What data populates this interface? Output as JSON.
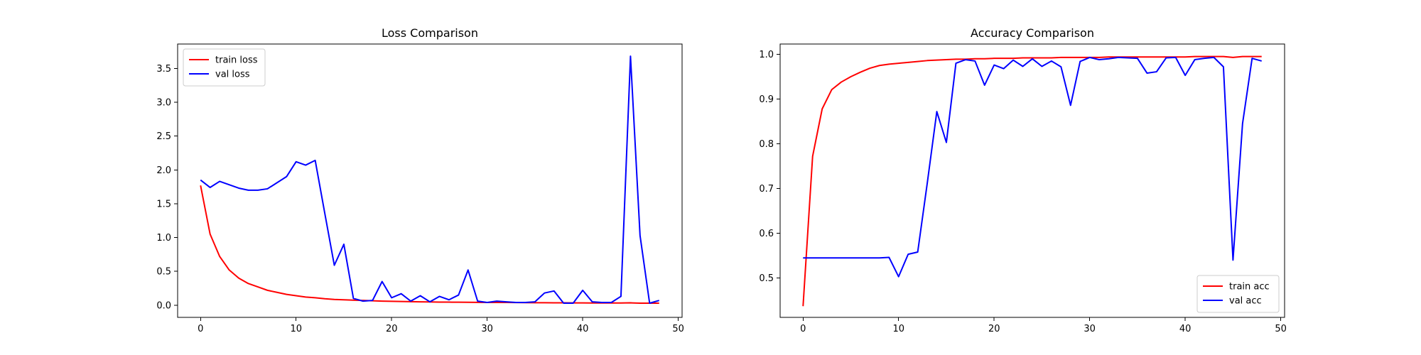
{
  "chart_data": [
    {
      "type": "line",
      "title": "Loss Comparison",
      "xlabel": "",
      "ylabel": "",
      "xlim": [
        -2.4,
        50.4
      ],
      "ylim": [
        -0.18,
        3.86
      ],
      "xticks": [
        0,
        10,
        20,
        30,
        40,
        50
      ],
      "yticks": [
        0.0,
        0.5,
        1.0,
        1.5,
        2.0,
        2.5,
        3.0,
        3.5
      ],
      "yticks_decimals": 1,
      "grid": false,
      "legend": "top-left",
      "series": [
        {
          "name": "train loss",
          "color": "#ff0000",
          "x": [
            0,
            1,
            2,
            3,
            4,
            5,
            6,
            7,
            8,
            9,
            10,
            11,
            12,
            13,
            14,
            15,
            16,
            17,
            18,
            19,
            20,
            21,
            22,
            23,
            24,
            25,
            26,
            27,
            28,
            29,
            30,
            31,
            32,
            33,
            34,
            35,
            36,
            37,
            38,
            39,
            40,
            41,
            42,
            43,
            44,
            45,
            46,
            47,
            48
          ],
          "values": [
            1.77,
            1.05,
            0.72,
            0.52,
            0.4,
            0.32,
            0.27,
            0.22,
            0.19,
            0.16,
            0.14,
            0.12,
            0.11,
            0.095,
            0.085,
            0.08,
            0.075,
            0.07,
            0.065,
            0.06,
            0.057,
            0.055,
            0.052,
            0.05,
            0.048,
            0.046,
            0.045,
            0.044,
            0.043,
            0.042,
            0.041,
            0.04,
            0.04,
            0.039,
            0.038,
            0.037,
            0.036,
            0.035,
            0.035,
            0.034,
            0.034,
            0.033,
            0.033,
            0.032,
            0.032,
            0.035,
            0.03,
            0.03,
            0.03
          ]
        },
        {
          "name": "val loss",
          "color": "#0000ff",
          "x": [
            0,
            1,
            2,
            3,
            4,
            5,
            6,
            7,
            8,
            9,
            10,
            11,
            12,
            13,
            14,
            15,
            16,
            17,
            18,
            19,
            20,
            21,
            22,
            23,
            24,
            25,
            26,
            27,
            28,
            29,
            30,
            31,
            32,
            33,
            34,
            35,
            36,
            37,
            38,
            39,
            40,
            41,
            42,
            43,
            44,
            45,
            46,
            47,
            48
          ],
          "values": [
            1.85,
            1.74,
            1.83,
            1.78,
            1.73,
            1.7,
            1.7,
            1.72,
            1.81,
            1.9,
            2.12,
            2.07,
            2.14,
            1.36,
            0.59,
            0.9,
            0.1,
            0.06,
            0.07,
            0.35,
            0.11,
            0.17,
            0.06,
            0.14,
            0.05,
            0.13,
            0.08,
            0.15,
            0.52,
            0.06,
            0.04,
            0.06,
            0.05,
            0.04,
            0.04,
            0.05,
            0.18,
            0.21,
            0.03,
            0.03,
            0.22,
            0.05,
            0.04,
            0.04,
            0.13,
            3.68,
            1.03,
            0.03,
            0.07
          ]
        }
      ]
    },
    {
      "type": "line",
      "title": "Accuracy Comparison",
      "xlabel": "",
      "ylabel": "",
      "xlim": [
        -2.4,
        50.4
      ],
      "ylim": [
        0.412,
        1.023
      ],
      "xticks": [
        0,
        10,
        20,
        30,
        40,
        50
      ],
      "yticks": [
        0.5,
        0.6,
        0.7,
        0.8,
        0.9,
        1.0
      ],
      "yticks_decimals": 1,
      "grid": false,
      "legend": "bottom-right",
      "series": [
        {
          "name": "train acc",
          "color": "#ff0000",
          "x": [
            0,
            1,
            2,
            3,
            4,
            5,
            6,
            7,
            8,
            9,
            10,
            11,
            12,
            13,
            14,
            15,
            16,
            17,
            18,
            19,
            20,
            21,
            22,
            23,
            24,
            25,
            26,
            27,
            28,
            29,
            30,
            31,
            32,
            33,
            34,
            35,
            36,
            37,
            38,
            39,
            40,
            41,
            42,
            43,
            44,
            45,
            46,
            47,
            48
          ],
          "values": [
            0.437,
            0.772,
            0.878,
            0.921,
            0.938,
            0.95,
            0.96,
            0.969,
            0.975,
            0.978,
            0.98,
            0.982,
            0.984,
            0.986,
            0.987,
            0.988,
            0.989,
            0.989,
            0.99,
            0.99,
            0.991,
            0.991,
            0.991,
            0.992,
            0.992,
            0.992,
            0.992,
            0.993,
            0.993,
            0.993,
            0.993,
            0.993,
            0.994,
            0.994,
            0.994,
            0.994,
            0.994,
            0.994,
            0.994,
            0.994,
            0.994,
            0.995,
            0.995,
            0.995,
            0.995,
            0.993,
            0.995,
            0.995,
            0.995
          ]
        },
        {
          "name": "val acc",
          "color": "#0000ff",
          "x": [
            0,
            1,
            2,
            3,
            4,
            5,
            6,
            7,
            8,
            9,
            10,
            11,
            12,
            13,
            14,
            15,
            16,
            17,
            18,
            19,
            20,
            21,
            22,
            23,
            24,
            25,
            26,
            27,
            28,
            29,
            30,
            31,
            32,
            33,
            34,
            35,
            36,
            37,
            38,
            39,
            40,
            41,
            42,
            43,
            44,
            45,
            46,
            47,
            48
          ],
          "values": [
            0.545,
            0.545,
            0.545,
            0.545,
            0.545,
            0.545,
            0.545,
            0.545,
            0.545,
            0.546,
            0.503,
            0.553,
            0.558,
            0.712,
            0.872,
            0.803,
            0.98,
            0.988,
            0.985,
            0.931,
            0.976,
            0.968,
            0.987,
            0.973,
            0.99,
            0.973,
            0.985,
            0.972,
            0.886,
            0.984,
            0.993,
            0.988,
            0.99,
            0.993,
            0.992,
            0.991,
            0.958,
            0.961,
            0.992,
            0.993,
            0.953,
            0.988,
            0.991,
            0.993,
            0.972,
            0.54,
            0.845,
            0.991,
            0.985
          ]
        }
      ]
    }
  ]
}
